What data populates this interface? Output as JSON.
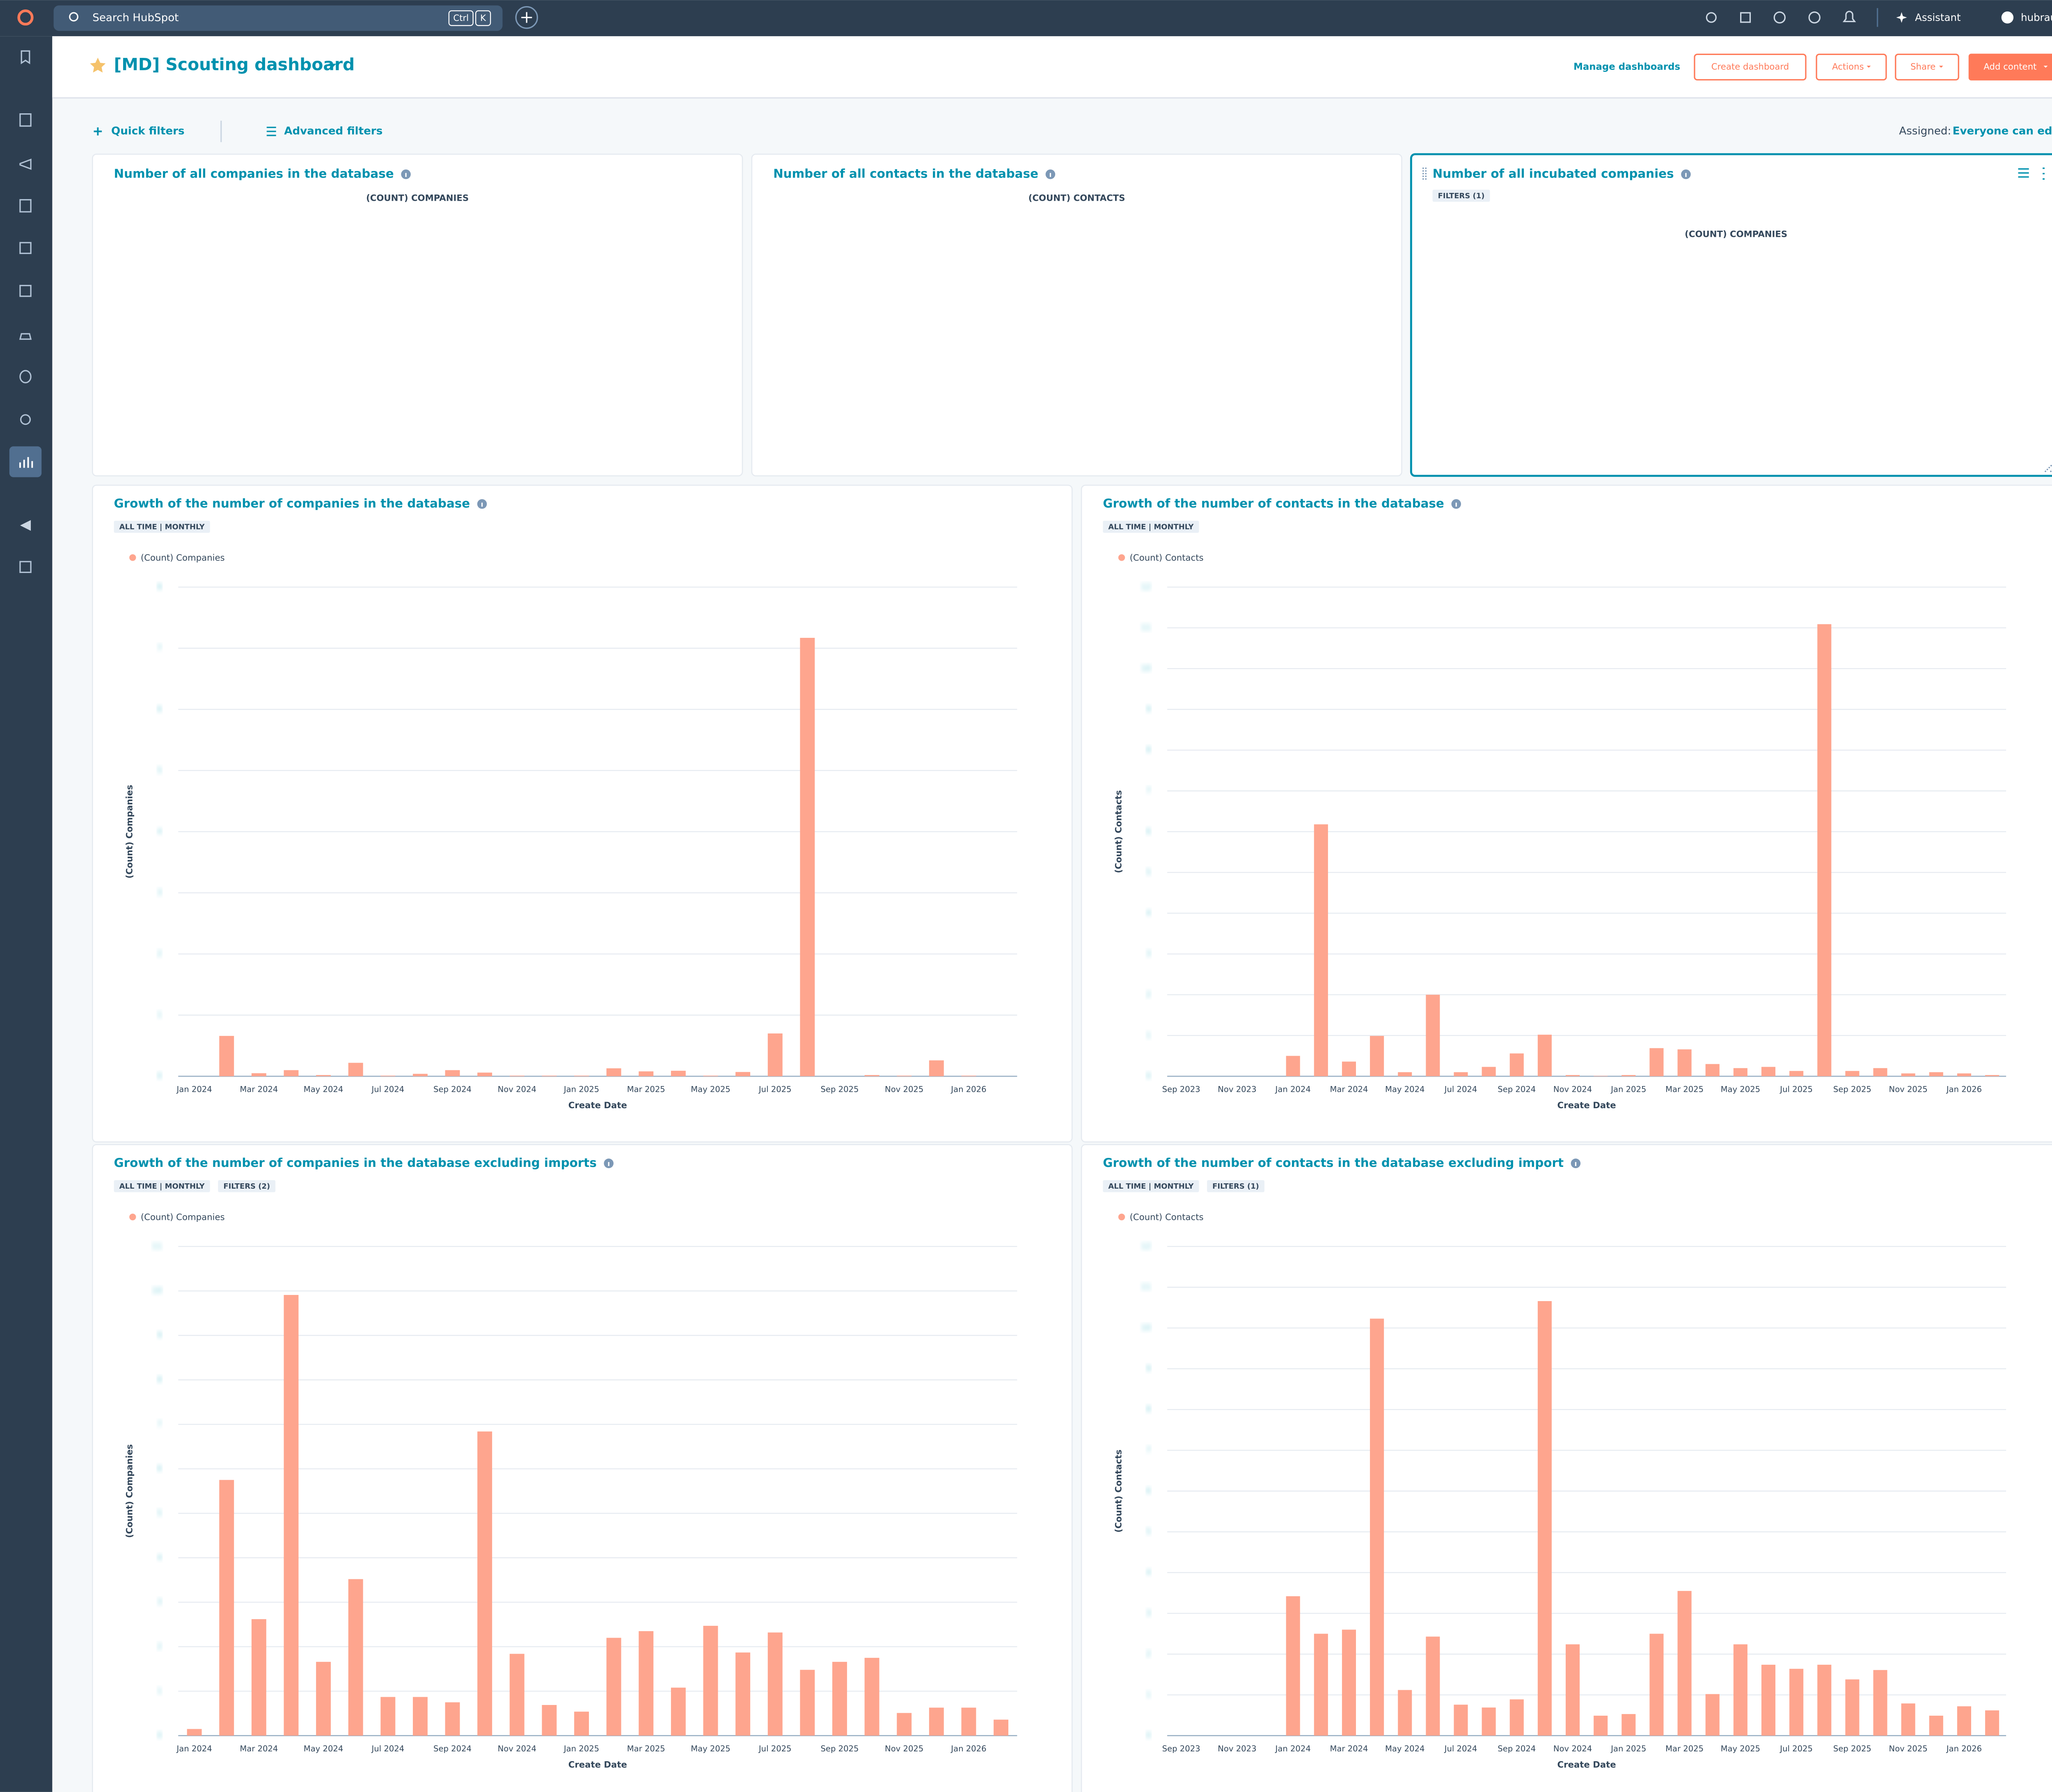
{
  "topbar": {
    "search": "Search HubSpot",
    "shortcut": [
      "Ctrl",
      "K"
    ],
    "assistant": "Assistant",
    "account": "hubraum"
  },
  "header": {
    "title": "[MD] Scouting dashboard",
    "manage": "Manage dashboards",
    "buttons": [
      "Create dashboard",
      "Actions",
      "Share"
    ],
    "primary": "Add content"
  },
  "filters": {
    "quick": "Quick filters",
    "advanced": "Advanced filters",
    "assigned_label": "Assigned:",
    "assigned_value": "Everyone can edit"
  },
  "kpis": [
    {
      "title": "Number of all companies in the database",
      "label": "(COUNT) COMPANIES"
    },
    {
      "title": "Number of all contacts in the database",
      "label": "(COUNT) CONTACTS"
    },
    {
      "title": "Number of all incubated companies",
      "tags": [
        "FILTERS (1)"
      ],
      "label": "(COUNT) COMPANIES"
    }
  ],
  "chart_data": [
    {
      "type": "bar",
      "title": "Growth of the number of companies in the database",
      "tags": [
        "ALL TIME | MONTHLY"
      ],
      "y_label": "(Count) Companies",
      "x_label": "Create Date",
      "grid": true,
      "ylim": [
        0,
        8
      ],
      "yticks": [
        0,
        1,
        2,
        3,
        4,
        5,
        6,
        7,
        8
      ],
      "categories": [
        "Jan 2024",
        null,
        "Mar 2024",
        null,
        "May 2024",
        null,
        "Jul 2024",
        null,
        "Sep 2024",
        null,
        "Nov 2024",
        null,
        "Jan 2025",
        null,
        "Mar 2025",
        null,
        "May 2025",
        null,
        "Jul 2025",
        null,
        "Sep 2025",
        null,
        "Nov 2025",
        null,
        "Jan 2026",
        null
      ],
      "series": [
        {
          "name": "(Count) Companies",
          "color": "#fea58e",
          "values": [
            0,
            0.66,
            0.05,
            0.1,
            0.02,
            0.22,
            0.01,
            0.04,
            0.1,
            0.06,
            0.01,
            0.01,
            0.01,
            0.13,
            0.08,
            0.09,
            0.01,
            0.07,
            0.7,
            7.17,
            0,
            0.02,
            0.01,
            0.26,
            0.01,
            0
          ]
        }
      ]
    },
    {
      "type": "bar",
      "title": "Growth of the number of contacts in the database",
      "tags": [
        "ALL TIME | MONTHLY"
      ],
      "y_label": "(Count) Contacts",
      "x_label": "Create Date",
      "grid": true,
      "ylim": [
        0,
        12
      ],
      "yticks": [
        0,
        1,
        2,
        3,
        4,
        5,
        6,
        7,
        8,
        9,
        10,
        11,
        12
      ],
      "categories": [
        "Sep 2023",
        null,
        "Nov 2023",
        null,
        "Jan 2024",
        null,
        "Mar 2024",
        null,
        "May 2024",
        null,
        "Jul 2024",
        null,
        "Sep 2024",
        null,
        "Nov 2024",
        null,
        "Jan 2025",
        null,
        "Mar 2025",
        null,
        "May 2025",
        null,
        "Jul 2025",
        null,
        "Sep 2025",
        null,
        "Nov 2025",
        null,
        "Jan 2026",
        null
      ],
      "series": [
        {
          "name": "(Count) Contacts",
          "color": "#fea58e",
          "values": [
            0,
            0,
            0,
            0,
            0.5,
            6.18,
            0.36,
            0.99,
            0.1,
            2.0,
            0.1,
            0.23,
            0.56,
            1.02,
            0.03,
            0.01,
            0.03,
            0.69,
            0.66,
            0.3,
            0.2,
            0.23,
            0.13,
            11.09,
            0.13,
            0.2,
            0.07,
            0.1,
            0.07,
            0.03
          ]
        }
      ]
    },
    {
      "type": "bar",
      "title": "Growth of the number of companies in the database excluding imports",
      "tags": [
        "ALL TIME | MONTHLY",
        "FILTERS (2)"
      ],
      "y_label": "(Count) Companies",
      "x_label": "Create Date",
      "grid": true,
      "ylim": [
        0,
        11
      ],
      "yticks": [
        0,
        1,
        2,
        3,
        4,
        5,
        6,
        7,
        8,
        9,
        10,
        11
      ],
      "categories": [
        "Jan 2024",
        null,
        "Mar 2024",
        null,
        "May 2024",
        null,
        "Jul 2024",
        null,
        "Sep 2024",
        null,
        "Nov 2024",
        null,
        "Jan 2025",
        null,
        "Mar 2025",
        null,
        "May 2025",
        null,
        "Jul 2025",
        null,
        "Sep 2025",
        null,
        "Nov 2025",
        null,
        "Jan 2026",
        null
      ],
      "series": [
        {
          "name": "(Count) Companies",
          "color": "#fea58e",
          "values": [
            0.15,
            5.75,
            2.62,
            9.91,
            1.66,
            3.52,
            0.87,
            0.87,
            0.75,
            6.84,
            1.84,
            0.69,
            0.54,
            2.2,
            2.35,
            1.08,
            2.47,
            1.87,
            2.32,
            1.48,
            1.66,
            1.75,
            0.51,
            0.63,
            0.63,
            0.36
          ]
        }
      ]
    },
    {
      "type": "bar",
      "title": "Growth of the number of contacts in the database excluding import",
      "tags": [
        "ALL TIME | MONTHLY",
        "FILTERS (1)"
      ],
      "y_label": "(Count) Contacts",
      "x_label": "Create Date",
      "grid": true,
      "ylim": [
        0,
        12
      ],
      "yticks": [
        0,
        1,
        2,
        3,
        4,
        5,
        6,
        7,
        8,
        9,
        10,
        11,
        12
      ],
      "categories": [
        "Sep 2023",
        null,
        "Nov 2023",
        null,
        "Jan 2024",
        null,
        "Mar 2024",
        null,
        "May 2024",
        null,
        "Jul 2024",
        null,
        "Sep 2024",
        null,
        "Nov 2024",
        null,
        "Jan 2025",
        null,
        "Mar 2025",
        null,
        "May 2025",
        null,
        "Jul 2025",
        null,
        "Sep 2025",
        null,
        "Nov 2025",
        null,
        "Jan 2026",
        null
      ],
      "series": [
        {
          "name": "(Count) Contacts",
          "color": "#fea58e",
          "values": [
            0,
            0,
            0,
            0,
            3.42,
            2.5,
            2.6,
            10.23,
            1.12,
            2.43,
            0.76,
            0.69,
            0.89,
            10.66,
            2.24,
            0.49,
            0.53,
            2.5,
            3.55,
            1.02,
            2.24,
            1.74,
            1.64,
            1.74,
            1.38,
            1.61,
            0.79,
            0.49,
            0.72,
            0.62
          ]
        }
      ]
    }
  ]
}
